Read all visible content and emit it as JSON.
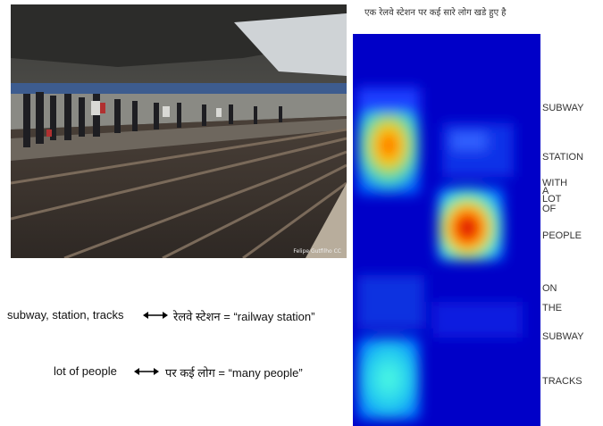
{
  "figure": {
    "header_words": [
      "एक",
      "रेलवे",
      "स्टेशन",
      "पर",
      "कई",
      "सारे",
      "लोग",
      "खडे",
      "हुए",
      "है"
    ],
    "labels": [
      "SUBWAY",
      "STATION",
      "WITH",
      "A",
      "LOT",
      "OF",
      "PEOPLE",
      "ON",
      "THE",
      "SUBWAY",
      "TRACKS"
    ],
    "photo_credit": "Felipe Gutfilho CC",
    "pairs": [
      {
        "english": "subway, station, tracks",
        "hindi": "रेलवे स्टेशन = “railway station”"
      },
      {
        "english": "lot of people",
        "hindi": "पर कई लोग = “many people”"
      }
    ]
  }
}
